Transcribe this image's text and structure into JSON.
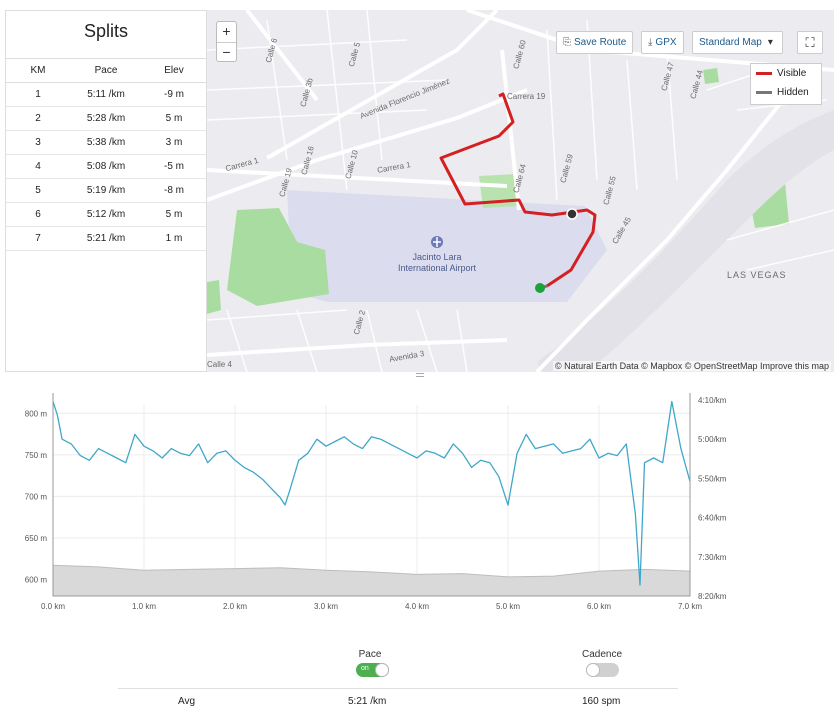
{
  "splits": {
    "title": "Splits",
    "columns": [
      "KM",
      "Pace",
      "Elev"
    ],
    "rows": [
      [
        "1",
        "5:11 /km",
        "-9 m"
      ],
      [
        "2",
        "5:28 /km",
        "5 m"
      ],
      [
        "3",
        "5:38 /km",
        "3 m"
      ],
      [
        "4",
        "5:08 /km",
        "-5 m"
      ],
      [
        "5",
        "5:19 /km",
        "-8 m"
      ],
      [
        "6",
        "5:12 /km",
        "5 m"
      ],
      [
        "7",
        "5:21 /km",
        "1 m"
      ]
    ]
  },
  "map": {
    "zoom_in": "+",
    "zoom_out": "−",
    "save_route": "Save Route",
    "gpx": "GPX",
    "map_style": "Standard Map",
    "fullscreen_icon": "expand-icon",
    "legend": [
      {
        "label": "Visible",
        "color": "#d42020"
      },
      {
        "label": "Hidden",
        "color": "#777777"
      }
    ],
    "attribution": "© Natural Earth Data © Mapbox © OpenStreetMap Improve this map",
    "airport_label": "Jacinto Lara International Airport",
    "place_labels": [
      "Avenida Florencio Jiménez",
      "Carrera 1",
      "Carrera 1",
      "Carrera 19",
      "Calle 6",
      "Calle 5",
      "Calle 3b",
      "Calle 16",
      "Calle 19",
      "Calle 10",
      "Calle 64",
      "Calle 60",
      "Calle 59",
      "Calle 55",
      "Calle 45",
      "Calle 47",
      "Calle 44",
      "Calle 4",
      "Calle 2",
      "Avenida 3",
      "LAS VEGAS"
    ],
    "route_colors": {
      "visible": "#d42020",
      "start": "#1aa33a"
    }
  },
  "toggles": {
    "pace_label": "Pace",
    "pace_state": "on",
    "cadence_label": "Cadence",
    "cadence_state": "off"
  },
  "averages": {
    "label": "Avg",
    "pace": "5:21 /km",
    "cadence": "160 spm"
  },
  "chart_data": {
    "type": "line",
    "xlabel": "",
    "x_ticks": [
      "0.0 km",
      "1.0 km",
      "2.0 km",
      "3.0 km",
      "4.0 km",
      "5.0 km",
      "6.0 km",
      "7.0 km"
    ],
    "xlim": [
      0,
      7
    ],
    "y_left_ticks": [
      "800 m",
      "750 m",
      "700 m",
      "650 m",
      "600 m"
    ],
    "y_right_ticks": [
      "4:10/km",
      "5:00/km",
      "5:50/km",
      "6:40/km",
      "7:30/km",
      "8:20/km"
    ],
    "series": [
      {
        "name": "Pace",
        "color": "#3fa7c9",
        "x": [
          0,
          0.05,
          0.1,
          0.2,
          0.3,
          0.4,
          0.5,
          0.6,
          0.7,
          0.8,
          0.9,
          1.0,
          1.1,
          1.2,
          1.3,
          1.4,
          1.5,
          1.6,
          1.7,
          1.8,
          1.9,
          2.0,
          2.1,
          2.2,
          2.3,
          2.4,
          2.5,
          2.55,
          2.6,
          2.7,
          2.8,
          2.9,
          3.0,
          3.1,
          3.2,
          3.3,
          3.4,
          3.5,
          3.6,
          3.7,
          3.8,
          3.9,
          4.0,
          4.1,
          4.2,
          4.3,
          4.4,
          4.5,
          4.6,
          4.7,
          4.8,
          4.9,
          5.0,
          5.1,
          5.2,
          5.3,
          5.4,
          5.5,
          5.6,
          5.7,
          5.8,
          5.9,
          6.0,
          6.1,
          6.2,
          6.3,
          6.4,
          6.45,
          6.5,
          6.6,
          6.7,
          6.8,
          6.9,
          7.0
        ],
        "y": [
          4.2,
          4.5,
          5.0,
          5.1,
          5.35,
          5.45,
          5.2,
          5.3,
          5.4,
          5.5,
          4.9,
          5.15,
          5.25,
          5.4,
          5.2,
          5.3,
          5.35,
          5.1,
          5.5,
          5.3,
          5.25,
          5.45,
          5.6,
          5.7,
          5.85,
          6.05,
          6.25,
          6.4,
          6.1,
          5.45,
          5.3,
          5.0,
          5.15,
          5.05,
          4.95,
          5.1,
          5.2,
          4.95,
          5.0,
          5.1,
          5.2,
          5.3,
          5.4,
          5.25,
          5.3,
          5.4,
          5.1,
          5.3,
          5.6,
          5.45,
          5.5,
          5.8,
          6.4,
          5.3,
          4.9,
          5.2,
          5.15,
          5.1,
          5.3,
          5.25,
          5.2,
          5.0,
          5.4,
          5.3,
          5.35,
          5.1,
          6.6,
          8.1,
          5.5,
          5.4,
          5.5,
          4.2,
          5.2,
          5.9
        ]
      },
      {
        "name": "Elevation",
        "color": "#cccccc",
        "x": [
          0,
          0.5,
          1.0,
          1.5,
          2.0,
          2.5,
          3.0,
          3.5,
          4.0,
          4.5,
          5.0,
          5.5,
          6.0,
          6.5,
          7.0
        ],
        "y": [
          617,
          615,
          611,
          612,
          613,
          614,
          611,
          609,
          606,
          607,
          603,
          604,
          610,
          612,
          610
        ]
      }
    ]
  }
}
